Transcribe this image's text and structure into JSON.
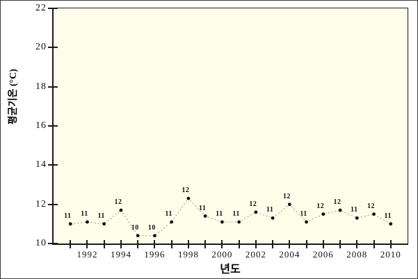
{
  "figure": {
    "outer_border_color": "#3a3a3a",
    "page_background": "#ffffff",
    "plot_background": "#fdfde9",
    "axis_color": "#1a1a1a",
    "dashed_line_color": "#999990",
    "marker_color": "#111111",
    "text_color": "#111111"
  },
  "chart_data": {
    "type": "line",
    "title": "",
    "xlabel": "년도",
    "ylabel": "평균기온 (°C)",
    "x": [
      1991,
      1992,
      1993,
      1994,
      1995,
      1996,
      1997,
      1998,
      1999,
      2000,
      2001,
      2002,
      2003,
      2004,
      2005,
      2006,
      2007,
      2008,
      2009,
      2010
    ],
    "values": [
      11.0,
      11.1,
      11.0,
      11.7,
      10.4,
      10.4,
      11.1,
      12.3,
      11.4,
      11.1,
      11.1,
      11.6,
      11.3,
      12.0,
      11.1,
      11.5,
      11.7,
      11.3,
      11.5,
      11.0
    ],
    "point_labels": [
      "11",
      "11",
      "11",
      "12",
      "10",
      "10",
      "11",
      "12",
      "11",
      "11",
      "11",
      "12",
      "11",
      "12",
      "11",
      "12",
      "12",
      "11",
      "12",
      "11"
    ],
    "xlim": [
      1990,
      2011
    ],
    "ylim": [
      10,
      22
    ],
    "x_ticks_all_years": true,
    "x_tick_labels": [
      1992,
      1994,
      1996,
      1998,
      2000,
      2002,
      2004,
      2006,
      2008,
      2010
    ],
    "y_ticks": [
      10,
      12,
      14,
      16,
      18,
      20,
      22
    ],
    "line_style": "dashed",
    "marker": "filled-circle",
    "grid": false,
    "legend": "none"
  }
}
